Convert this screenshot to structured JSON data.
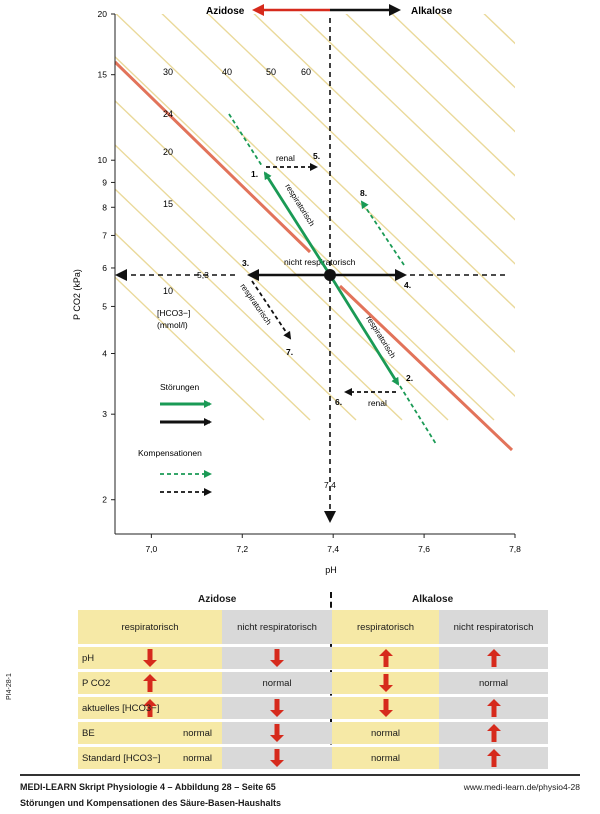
{
  "chart_data": {
    "type": "diagram",
    "title_left": "Azidose",
    "title_right": "Alkalose",
    "xlabel": "pH",
    "ylabel": "P CO2 (kPa)",
    "xlim": [
      6.92,
      7.8
    ],
    "ylim": [
      1.7,
      20
    ],
    "x_ticks": [
      "7,0",
      "7,2",
      "7,4",
      "7,6",
      "7,8"
    ],
    "x_tick_values": [
      7.0,
      7.2,
      7.4,
      7.6,
      7.8
    ],
    "y_ticks": [
      "2",
      "3",
      "4",
      "5",
      "6",
      "7",
      "8",
      "9",
      "10",
      "15",
      "20"
    ],
    "y_tick_values": [
      2,
      3,
      4,
      5,
      6,
      7,
      8,
      9,
      10,
      15,
      20
    ],
    "isobar_labels": [
      "30",
      "40",
      "50",
      "60",
      "24",
      "20",
      "15",
      "10"
    ],
    "hco3_label_1": "[HCO3−]",
    "hco3_label_2": "(mmol/l)",
    "ref_ph_label": "7,4",
    "ref_pco2_label": "5,3",
    "labels": {
      "renal_top": "renal",
      "renal_bottom": "renal",
      "respiratorisch_up": "respiratorisch",
      "respiratorisch_down": "respiratorisch",
      "respiratorisch_comp": "respiratorisch",
      "nicht_respiratorisch": "nicht respiratorisch"
    },
    "points": [
      "1.",
      "2.",
      "3.",
      "4.",
      "5.",
      "6.",
      "7.",
      "8."
    ],
    "legend": {
      "stoerungen": "Störungen",
      "kompensationen": "Kompensationen"
    }
  },
  "table": {
    "group_left": "Azidose",
    "group_right": "Alkalose",
    "columns": [
      "respiratorisch",
      "nicht respiratorisch",
      "respiratorisch",
      "nicht respiratorisch"
    ],
    "rows": [
      {
        "label": "pH",
        "cells": [
          "down",
          "down",
          "up",
          "up"
        ]
      },
      {
        "label": "P CO2",
        "cells": [
          "up",
          "normal",
          "down",
          "normal"
        ]
      },
      {
        "label": "aktuelles [HCO3−]",
        "cells": [
          "up",
          "down",
          "down",
          "up"
        ]
      },
      {
        "label": "BE",
        "cells": [
          "normal",
          "down",
          "normal",
          "up"
        ]
      },
      {
        "label": "Standard [HCO3−]",
        "cells": [
          "normal",
          "down",
          "normal",
          "up"
        ]
      }
    ],
    "normal_text": "normal"
  },
  "footer": {
    "title": "MEDI-LEARN Skript Physiologie 4 – Abbildung 28 – Seite 65",
    "url": "www.medi-learn.de/physio4-28",
    "subtitle": "Störungen und Kompensationen des Säure-Basen-Haushalts",
    "side_code": "PI4-28-1"
  },
  "colors": {
    "green": "#1a9a55",
    "black": "#111111",
    "red": "#d62a1c",
    "orange": "#e2735a",
    "isobar": "#ead99a",
    "yellow_cell": "#f6e9a6",
    "grey_cell": "#d9d9d9"
  }
}
